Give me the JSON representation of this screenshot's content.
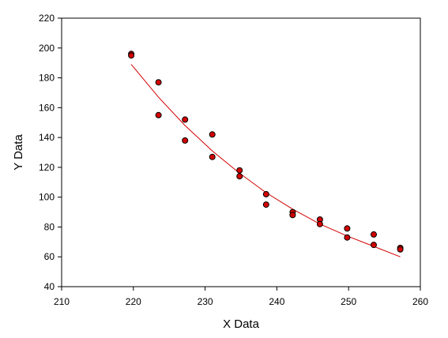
{
  "chart_data": {
    "type": "scatter",
    "title": "",
    "xlabel": "X Data",
    "ylabel": "Y Data",
    "xlim": [
      210,
      260
    ],
    "ylim": [
      40,
      220
    ],
    "xticks": [
      210,
      220,
      230,
      240,
      250,
      260
    ],
    "yticks": [
      40,
      60,
      80,
      100,
      120,
      140,
      160,
      180,
      200,
      220
    ],
    "grid": false,
    "legend": "none",
    "series": [
      {
        "type": "scatter",
        "color": "#d40000",
        "edge_color": "#000000",
        "points": [
          [
            219.7,
            196
          ],
          [
            219.7,
            195
          ],
          [
            223.5,
            177
          ],
          [
            223.5,
            155
          ],
          [
            227.2,
            152
          ],
          [
            227.2,
            138
          ],
          [
            231.0,
            142
          ],
          [
            231.0,
            127
          ],
          [
            234.8,
            118
          ],
          [
            234.8,
            114
          ],
          [
            238.5,
            102
          ],
          [
            238.5,
            95
          ],
          [
            242.2,
            90
          ],
          [
            242.2,
            88
          ],
          [
            246.0,
            85
          ],
          [
            246.0,
            82
          ],
          [
            249.8,
            79
          ],
          [
            249.8,
            73
          ],
          [
            253.5,
            75
          ],
          [
            253.5,
            68
          ],
          [
            257.2,
            66
          ],
          [
            257.2,
            65
          ]
        ]
      },
      {
        "type": "line",
        "color": "#d40000",
        "points": [
          [
            219.7,
            189
          ],
          [
            223.5,
            167
          ],
          [
            227.2,
            148
          ],
          [
            231.0,
            131
          ],
          [
            234.8,
            116
          ],
          [
            238.5,
            103
          ],
          [
            242.2,
            92
          ],
          [
            246.0,
            82
          ],
          [
            249.8,
            74
          ],
          [
            253.5,
            67
          ],
          [
            257.2,
            60
          ]
        ]
      }
    ]
  }
}
